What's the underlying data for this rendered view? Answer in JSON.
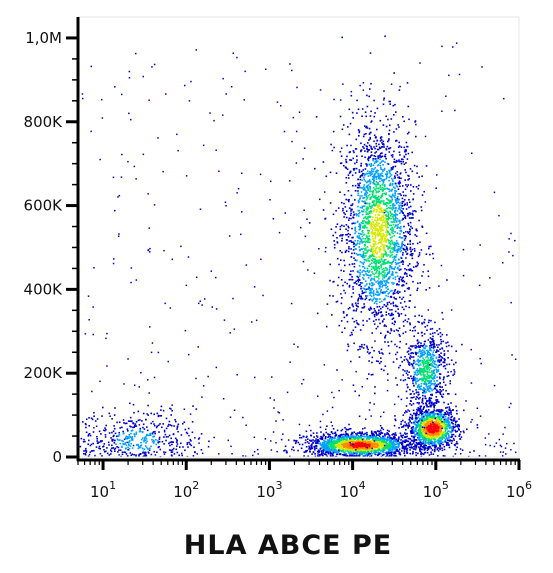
{
  "chart_data": {
    "type": "scatter",
    "subtype": "flow-cytometry-density-dot-plot",
    "title": "",
    "xlabel": "HLA ABCE PE",
    "ylabel": "",
    "x_scale": "log",
    "xlim": [
      5,
      1000000
    ],
    "ylim": [
      0,
      1050000
    ],
    "x_ticks": [
      {
        "value": 10,
        "base": "10",
        "exp": "1"
      },
      {
        "value": 100,
        "base": "10",
        "exp": "2"
      },
      {
        "value": 1000,
        "base": "10",
        "exp": "3"
      },
      {
        "value": 10000,
        "base": "10",
        "exp": "4"
      },
      {
        "value": 100000,
        "base": "10",
        "exp": "5"
      },
      {
        "value": 1000000,
        "base": "10",
        "exp": "6"
      }
    ],
    "y_ticks": [
      {
        "value": 0,
        "label": "0"
      },
      {
        "value": 200000,
        "label": "200K"
      },
      {
        "value": 400000,
        "label": "400K"
      },
      {
        "value": 600000,
        "label": "600K"
      },
      {
        "value": 800000,
        "label": "800K"
      },
      {
        "value": 1000000,
        "label": "1,0M"
      }
    ],
    "color_scale": [
      "#0000cc",
      "#00a0ff",
      "#00e070",
      "#d8e800",
      "#ff8800",
      "#ff0000"
    ],
    "populations": [
      {
        "center_x": 20000,
        "center_y": 540000,
        "spread_logx": 0.22,
        "spread_y": 130000,
        "points": 2400,
        "peak_density": 0.6
      },
      {
        "center_x": 12000,
        "center_y": 30000,
        "spread_logx": 0.32,
        "spread_y": 15000,
        "points": 1800,
        "peak_density": 0.95
      },
      {
        "center_x": 90000,
        "center_y": 70000,
        "spread_logx": 0.15,
        "spread_y": 25000,
        "points": 1200,
        "peak_density": 1.0
      },
      {
        "center_x": 75000,
        "center_y": 210000,
        "spread_logx": 0.13,
        "spread_y": 50000,
        "points": 700,
        "peak_density": 0.45
      },
      {
        "center_x": 25,
        "center_y": 40000,
        "spread_logx": 0.35,
        "spread_y": 35000,
        "points": 500,
        "peak_density": 0.25
      }
    ]
  }
}
